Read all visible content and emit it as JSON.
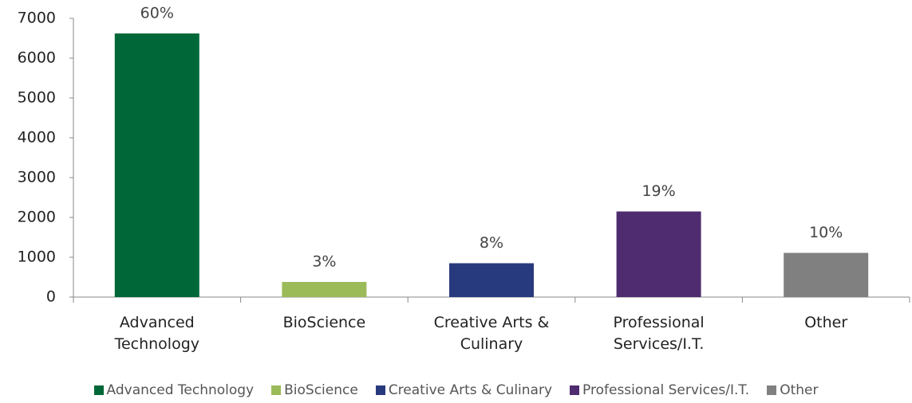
{
  "chart_data": {
    "type": "bar",
    "categories": [
      "Advanced Technology",
      "BioScience",
      "Creative Arts & Culinary",
      "Professional Services/I.T.",
      "Other"
    ],
    "values": [
      6620,
      380,
      850,
      2150,
      1110
    ],
    "value_labels": [
      "60%",
      "3%",
      "8%",
      "19%",
      "10%"
    ],
    "colors": [
      "#006838",
      "#9bbb59",
      "#283a7e",
      "#4f2c70",
      "#808080"
    ],
    "ylim": [
      0,
      7000
    ],
    "yticks": [
      0,
      1000,
      2000,
      3000,
      4000,
      5000,
      6000,
      7000
    ],
    "grid": false,
    "legend": "bottom"
  }
}
